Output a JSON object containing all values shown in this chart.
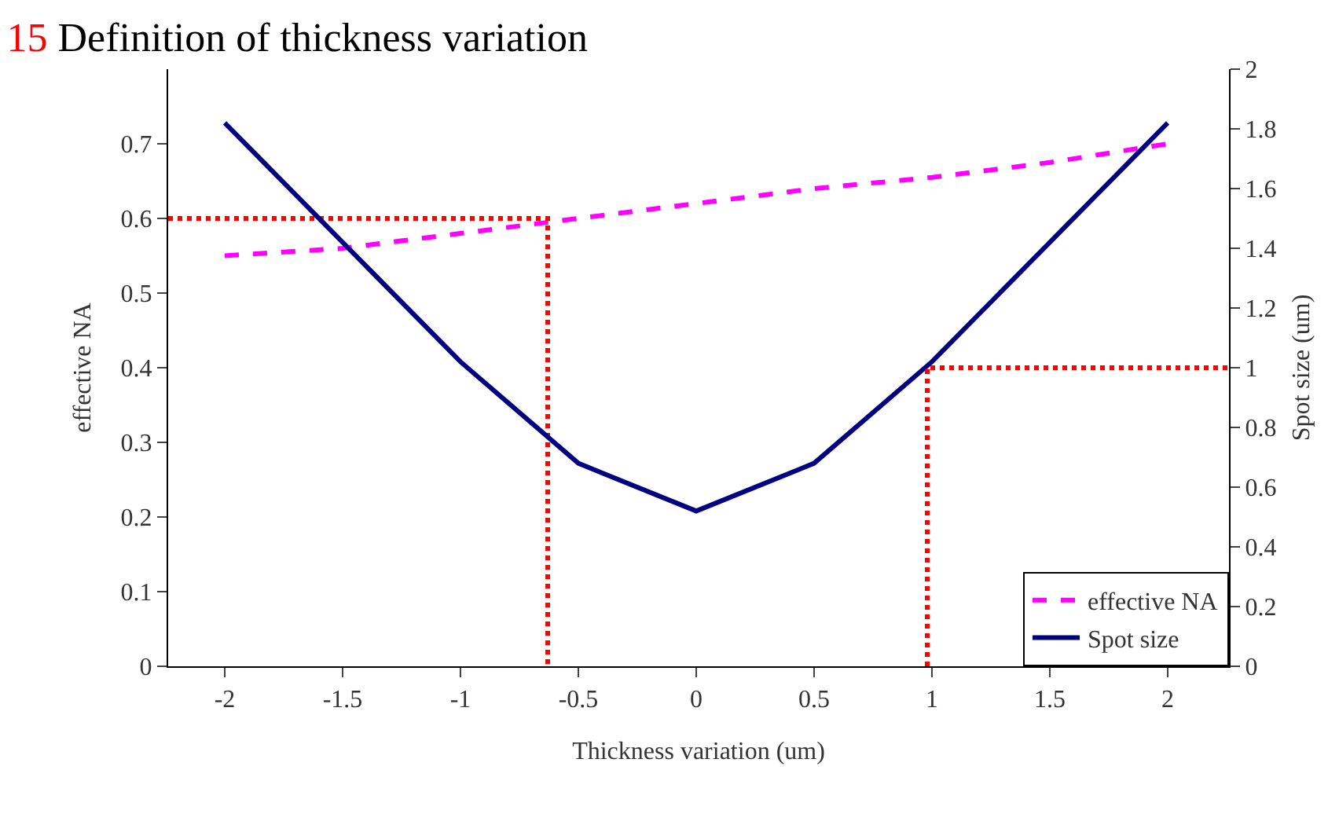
{
  "chart_data": {
    "type": "line",
    "title": "15 Definition of thickness variation",
    "xlabel": "Thickness variation (um)",
    "ylabel": "effective NA",
    "y2label": "Spot size (um)",
    "x": [
      -2,
      -1.5,
      -1,
      -0.5,
      0,
      0.5,
      1,
      1.5,
      2
    ],
    "series": [
      {
        "name": "effective NA",
        "color": "#ff00ff",
        "line_style": "dashed",
        "values": [
          0.55,
          0.56,
          0.58,
          0.6,
          0.62,
          0.64,
          0.655,
          0.675,
          0.7
        ]
      },
      {
        "name": "Spot size",
        "color": "#000080",
        "line_style": "solid",
        "axis": "y2",
        "values": [
          1.82,
          1.42,
          1.02,
          0.68,
          0.52,
          0.68,
          1.02,
          1.42,
          1.82
        ]
      },
      {
        "color": "#ff0000",
        "line_style": "dotted",
        "x": [
          -2.24,
          -0.63,
          -0.63
        ],
        "values": [
          0.6,
          0.6,
          0
        ]
      },
      {
        "color": "#ff0000",
        "line_style": "dotted",
        "axis": "y2",
        "x": [
          0.98,
          0.98,
          2.26
        ],
        "values": [
          0,
          1,
          1
        ]
      }
    ],
    "xlim": [
      -2.24,
      2.26
    ],
    "xticks": [
      -2,
      -1.5,
      -1,
      -0.5,
      0,
      0.5,
      1,
      1.5,
      2
    ],
    "ylim": [
      0,
      0.8
    ],
    "yticks": [
      0,
      0.1,
      0.2,
      0.3,
      0.4,
      0.5,
      0.6,
      0.7
    ],
    "y2lim": [
      0,
      2
    ],
    "y2ticks": [
      0,
      0.2,
      0.4,
      0.6,
      0.8,
      1,
      1.2,
      1.4,
      1.6,
      1.8,
      2
    ],
    "grid": false,
    "legend": "bottom right",
    "marker": "none"
  }
}
